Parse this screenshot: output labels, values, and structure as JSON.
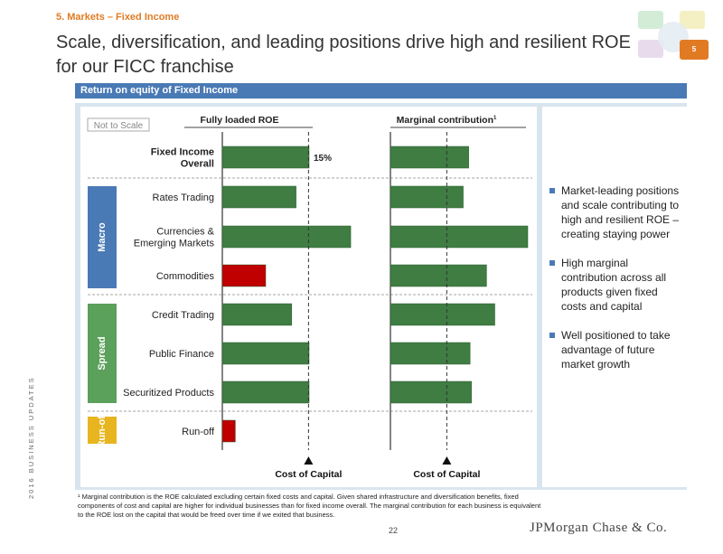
{
  "section_label": "5. Markets – Fixed Income",
  "title": "Scale, diversification, and leading positions drive high and resilient ROE for our FICC franchise",
  "page_badge": "5",
  "header": "Return on equity of Fixed Income",
  "chart_data": {
    "type": "bar",
    "orientation": "horizontal",
    "not_to_scale_label": "Not to Scale",
    "panels": [
      {
        "title": "Fully loaded ROE",
        "title_sup": "",
        "reference_label": "Cost of Capital",
        "reference_value": 0.72
      },
      {
        "title": "Marginal contribution",
        "title_sup": "1",
        "reference_label": "Cost of Capital",
        "reference_value": 0.72
      }
    ],
    "groups": [
      {
        "name": "",
        "color": ""
      },
      {
        "name": "Macro",
        "color": "#4a7ab5"
      },
      {
        "name": "Spread",
        "color": "#5ba05b"
      },
      {
        "name": "Run-off",
        "color": "#e8b520"
      }
    ],
    "categories": [
      {
        "label": "Fixed Income\nOverall",
        "group": "",
        "bold": true
      },
      {
        "label": "Rates Trading",
        "group": "Macro"
      },
      {
        "label": "Currencies &\nEmerging Markets",
        "group": "Macro"
      },
      {
        "label": "Commodities",
        "group": "Macro"
      },
      {
        "label": "Credit Trading",
        "group": "Spread"
      },
      {
        "label": "Public Finance",
        "group": "Spread"
      },
      {
        "label": "Securitized Products",
        "group": "Spread"
      },
      {
        "label": "Run-off",
        "group": "Run-off"
      }
    ],
    "series": [
      {
        "name": "Fully loaded ROE",
        "values": [
          1.0,
          0.85,
          1.48,
          0.5,
          0.8,
          1.0,
          1.0,
          0.15
        ],
        "colors": [
          "#3f7d42",
          "#3f7d42",
          "#3f7d42",
          "#c00000",
          "#3f7d42",
          "#3f7d42",
          "#3f7d42",
          "#c00000"
        ],
        "data_labels": [
          "15%",
          "",
          "",
          "",
          "",
          "",
          "",
          ""
        ]
      },
      {
        "name": "Marginal contribution",
        "values": [
          0.57,
          0.53,
          1.0,
          0.7,
          0.76,
          0.58,
          0.59,
          0
        ],
        "colors": [
          "#3f7d42",
          "#3f7d42",
          "#3f7d42",
          "#3f7d42",
          "#3f7d42",
          "#3f7d42",
          "#3f7d42",
          "#3f7d42"
        ],
        "data_labels": [
          "",
          "",
          "",
          "",
          "",
          "",
          "",
          ""
        ]
      }
    ]
  },
  "bullets": [
    "Market-leading positions and scale contributing to high and resilient ROE – creating staying power",
    "High marginal contribution across all products given fixed costs and capital",
    "Well positioned to take advantage of future market growth"
  ],
  "footnote": "¹ Marginal contribution is the ROE calculated excluding certain fixed costs and capital. Given shared infrastructure and diversification benefits, fixed components of cost and capital are higher for individual businesses than for fixed income overall. The marginal contribution for each business is equivalent to the ROE lost on the capital that would be freed over time if we exited that business.",
  "page_number": "22",
  "brand": "JPMorgan Chase & Co.",
  "vertical_label": "2016 BUSINESS UPDATES",
  "colors": {
    "accent": "#e07b24",
    "header": "#4a7ab5",
    "bar": "#3f7d42",
    "negative": "#c00000"
  }
}
